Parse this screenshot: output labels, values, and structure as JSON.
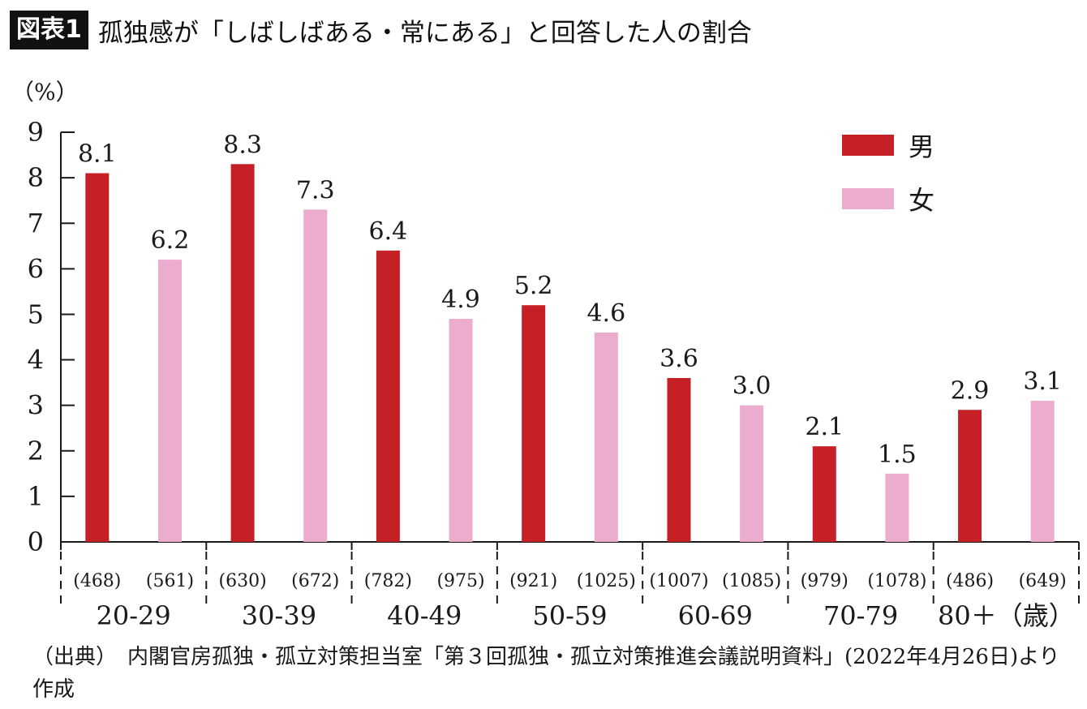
{
  "header": {
    "figure_label": "図表1",
    "title": "孤独感が「しばしばある・常にある」と回答した人の割合"
  },
  "chart_data": {
    "type": "bar",
    "title": "孤独感が「しばしばある・常にある」と回答した人の割合",
    "ylabel": "（%）",
    "xlabel": "",
    "ylim": [
      0,
      9
    ],
    "yticks": [
      "0",
      "1",
      "2",
      "3",
      "4",
      "5",
      "6",
      "7",
      "8",
      "9"
    ],
    "categories": [
      "20-29",
      "30-39",
      "40-49",
      "50-59",
      "60-69",
      "70-79",
      "80＋（歳）"
    ],
    "series": [
      {
        "name": "男",
        "color": "#c42025",
        "values": [
          8.1,
          8.3,
          6.4,
          5.2,
          3.6,
          2.1,
          2.9
        ],
        "labels": [
          "8.1",
          "8.3",
          "6.4",
          "5.2",
          "3.6",
          "2.1",
          "2.9"
        ],
        "sample_sizes": [
          "(468)",
          "(630)",
          "(782)",
          "(921)",
          "(1007)",
          "(979)",
          "(486)"
        ]
      },
      {
        "name": "女",
        "color": "#ecaccd",
        "values": [
          6.2,
          7.3,
          4.9,
          4.6,
          3.0,
          1.5,
          3.1
        ],
        "labels": [
          "6.2",
          "7.3",
          "4.9",
          "4.6",
          "3.0",
          "1.5",
          "3.1"
        ],
        "sample_sizes": [
          "(561)",
          "(672)",
          "(975)",
          "(1025)",
          "(1085)",
          "(1078)",
          "(649)"
        ]
      }
    ],
    "legend": {
      "position": "top-right"
    },
    "grid": false
  },
  "source": "（出典）　内閣官房孤独・孤立対策担当室「第３回孤独・孤立対策推進会議説明資料」(2022年4月26日)より作成"
}
